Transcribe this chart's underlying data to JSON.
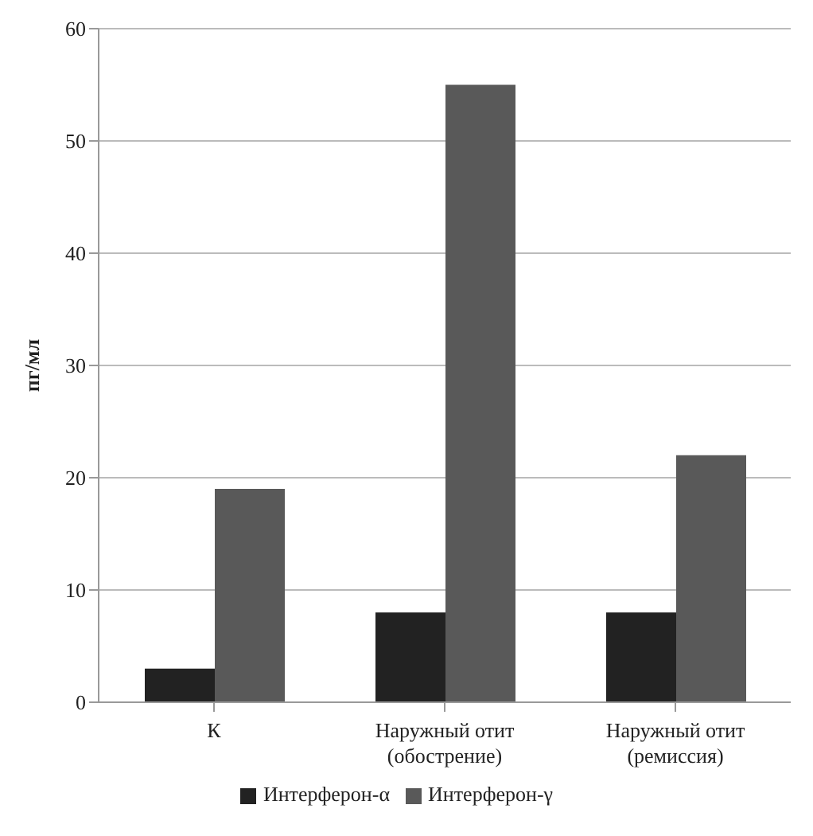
{
  "chart_data": {
    "type": "bar",
    "ylabel": "пг/мл",
    "categories": [
      "К",
      "Наружный отит (обострение)",
      "Наружный отит (ремиссия)"
    ],
    "series": [
      {
        "name": "Интерферон-α",
        "color": "#222222",
        "values": [
          3,
          8,
          8
        ]
      },
      {
        "name": "Интерферон-γ",
        "color": "#595959",
        "values": [
          19,
          55,
          22
        ]
      }
    ],
    "ylim": [
      0,
      60
    ],
    "yticks": [
      0,
      10,
      20,
      30,
      40,
      50,
      60
    ],
    "grid": "y",
    "legend": "bottom"
  }
}
